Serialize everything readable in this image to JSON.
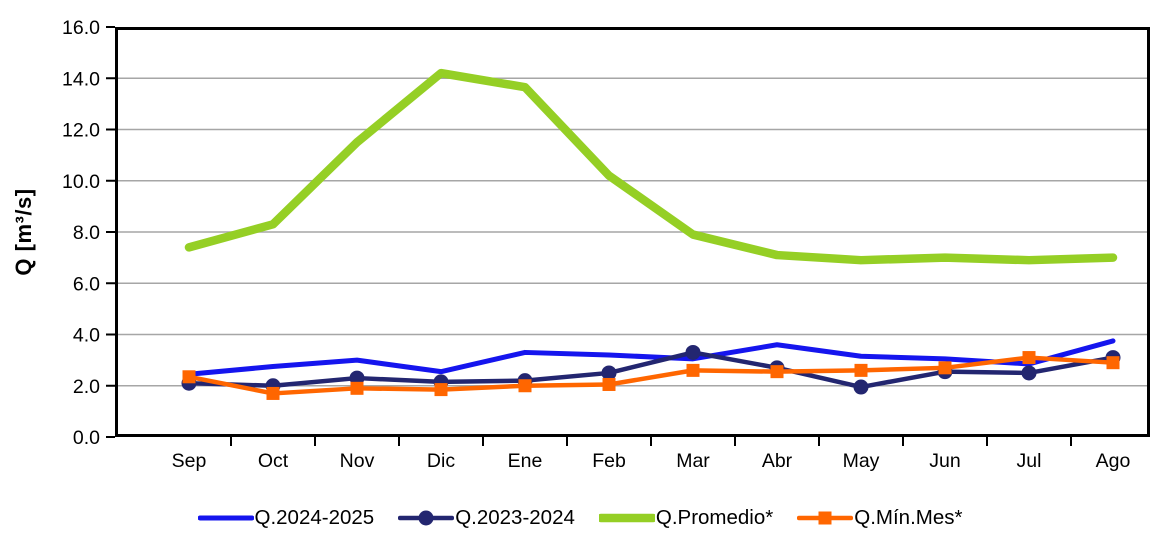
{
  "chart_data": {
    "type": "line",
    "title": "",
    "ylabel": "Q [m³/s]",
    "categories": [
      "Sep",
      "Oct",
      "Nov",
      "Dic",
      "Ene",
      "Feb",
      "Mar",
      "Abr",
      "May",
      "Jun",
      "Jul",
      "Ago"
    ],
    "y_axis": {
      "min": 0,
      "max": 16,
      "step": 2,
      "decimals": 1
    },
    "grid": true,
    "legend_position": "bottom",
    "gridline_color": "#a6a6a6",
    "axis_color": "#000000",
    "series": [
      {
        "name": "Q.2024-2025",
        "color": "#1515ee",
        "marker": "none",
        "line_width": 5,
        "values": [
          2.45,
          2.75,
          3.0,
          2.55,
          3.3,
          3.2,
          3.05,
          3.6,
          3.15,
          3.05,
          2.85,
          3.75
        ]
      },
      {
        "name": "Q.2023-2024",
        "color": "#232670",
        "marker": "circle",
        "line_width": 4.5,
        "values": [
          2.1,
          2.0,
          2.3,
          2.15,
          2.2,
          2.5,
          3.3,
          2.7,
          1.95,
          2.55,
          2.5,
          3.1
        ]
      },
      {
        "name": "Q.Promedio*",
        "color": "#95cf25",
        "marker": "none",
        "line_width": 8.5,
        "values": [
          7.4,
          8.3,
          11.5,
          14.2,
          13.65,
          10.2,
          7.9,
          7.1,
          6.9,
          7.0,
          6.9,
          7.0
        ]
      },
      {
        "name": "Q.Mín.Mes*",
        "color": "#ff6600",
        "marker": "square",
        "line_width": 4.5,
        "values": [
          2.35,
          1.7,
          1.9,
          1.85,
          2.0,
          2.05,
          2.6,
          2.55,
          2.6,
          2.7,
          3.1,
          2.9
        ]
      }
    ]
  }
}
